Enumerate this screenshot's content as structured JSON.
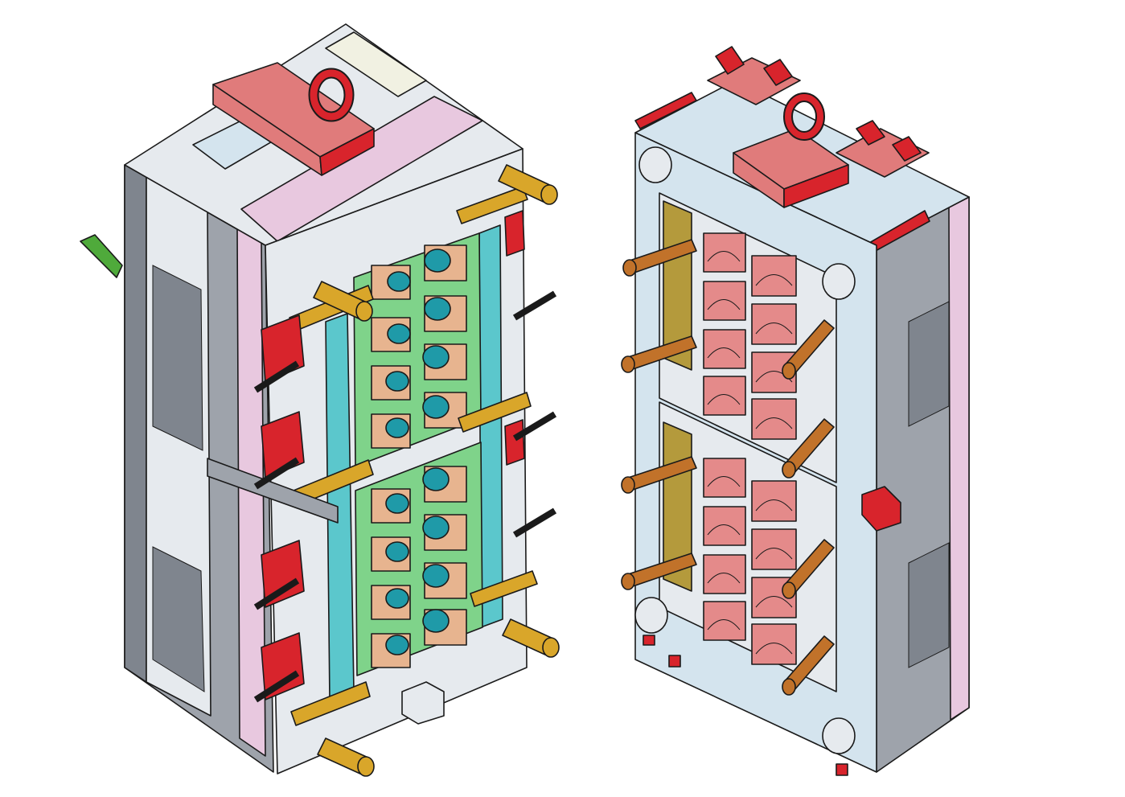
{
  "figure": {
    "kind": "isometric CAD line drawing",
    "subject_icons": [
      "mold-core-half-icon",
      "mold-cavity-half-icon"
    ],
    "colors": {
      "plate_light": "#e6eaee",
      "plate_side": "#9ea3ab",
      "plate_dark": "#7f858e",
      "pink_plate": "#e8c8df",
      "cream_plate": "#f1f1e2",
      "light_blue": "#d4e4ee",
      "cyan_rail": "#5bc7cc",
      "green_block": "#7fd38a",
      "teal_core": "#1f9aa8",
      "tan_block": "#e7b48f",
      "salmon_cavity": "#e48a8a",
      "red_part": "#d8242c",
      "clamp_red": "#e07b7b",
      "brass": "#d9a62a",
      "copper_pin": "#c1722a",
      "olive_block": "#b49a3c",
      "green_nozzle": "#4faa3b"
    }
  }
}
